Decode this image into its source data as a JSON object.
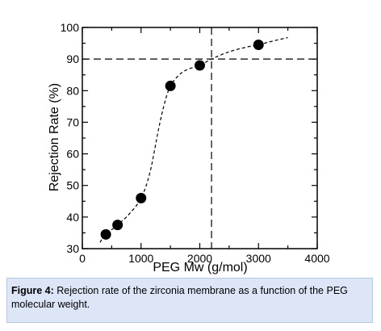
{
  "chart_data": {
    "type": "scatter",
    "xlabel": "PEG Mw (g/mol)",
    "ylabel": "Rejection Rate (%)",
    "xlim": [
      0,
      4000
    ],
    "ylim": [
      30,
      100
    ],
    "x_ticks": [
      "0",
      "1000",
      "2000",
      "3000",
      "4000"
    ],
    "y_ticks": [
      "30",
      "40",
      "50",
      "60",
      "70",
      "80",
      "90",
      "100"
    ],
    "grid": false,
    "series": [
      {
        "x": [
          400,
          600,
          1000,
          1500,
          2000,
          3000
        ],
        "y": [
          34.5,
          37.5,
          46,
          81.5,
          88,
          94.5
        ]
      }
    ],
    "fit_curve": {
      "x": [
        300,
        400,
        600,
        800,
        1000,
        1150,
        1300,
        1400,
        1500,
        1650,
        1800,
        2000,
        2200,
        2500,
        2800,
        3000,
        3200,
        3500
      ],
      "y": [
        32,
        34.5,
        37.5,
        41,
        46,
        54,
        68,
        76,
        81.5,
        85,
        86.8,
        88,
        90,
        92.3,
        93.8,
        94.5,
        95.5,
        96.8
      ]
    },
    "reference_lines": {
      "horizontal_y": 90,
      "vertical_x": 2200
    }
  },
  "caption": {
    "label": "Figure 4:",
    "text": " Rejection rate of the zirconia membrane as a function of the PEG molecular weight."
  }
}
